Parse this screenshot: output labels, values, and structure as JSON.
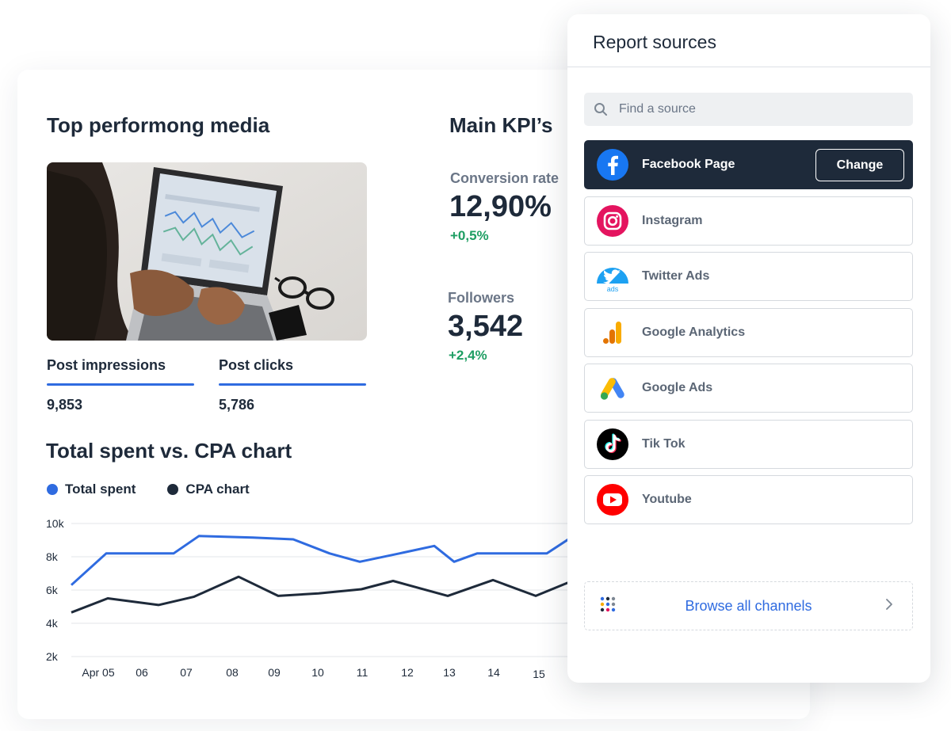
{
  "media": {
    "title": "Top performong media",
    "tabs": [
      {
        "label": "Post impressions",
        "value": "9,853"
      },
      {
        "label": "Post clicks",
        "value": "5,786"
      }
    ]
  },
  "kpis": {
    "title": "Main KPI’s",
    "items": [
      {
        "label": "Conversion rate",
        "value": "12,90%",
        "delta": "+0,5%"
      },
      {
        "label": "Followers",
        "value": "3,542",
        "delta": "+2,4%"
      }
    ]
  },
  "chart": {
    "title": "Total spent vs. CPA chart"
  },
  "chart_data": {
    "type": "line",
    "title": "Total spent vs. CPA chart",
    "x_tick_labels": [
      "Apr 05",
      "06",
      "07",
      "08",
      "09",
      "10",
      "11",
      "12",
      "13",
      "14",
      "15"
    ],
    "y_ticks": [
      "10k",
      "8k",
      "6k",
      "4k",
      "2k"
    ],
    "ylim": [
      2000,
      10000
    ],
    "grid": true,
    "legend_position": "top-left",
    "series": [
      {
        "name": "Total spent",
        "color": "#2f6be0",
        "values": [
          6300,
          8200,
          8200,
          8200,
          9250,
          9150,
          9050,
          8200,
          7700,
          8200,
          8650,
          7700,
          8200,
          8200,
          8200,
          9200,
          7800
        ]
      },
      {
        "name": "CPA chart",
        "color": "#1e2a3a",
        "values": [
          4650,
          5500,
          5100,
          5600,
          6800,
          5650,
          5800,
          6050,
          6550,
          5650,
          6600,
          5650,
          6550
        ]
      }
    ]
  },
  "sources": {
    "title": "Report sources",
    "search_placeholder": "Find a source",
    "items": [
      {
        "name": "Facebook Page",
        "icon": "facebook-icon",
        "active": true
      },
      {
        "name": "Instagram",
        "icon": "instagram-icon"
      },
      {
        "name": "Twitter Ads",
        "icon": "twitter-ads-icon"
      },
      {
        "name": "Google Analytics",
        "icon": "google-analytics-icon"
      },
      {
        "name": "Google Ads",
        "icon": "google-ads-icon"
      },
      {
        "name": "Tik Tok",
        "icon": "tiktok-icon"
      },
      {
        "name": "Youtube",
        "icon": "youtube-icon"
      }
    ],
    "change_label": "Change",
    "twitter_badge": "ads",
    "browse_label": "Browse all channels"
  },
  "colors": {
    "accent": "#2f6be0",
    "dark": "#1e2a3a",
    "positive": "#1e9e63"
  }
}
